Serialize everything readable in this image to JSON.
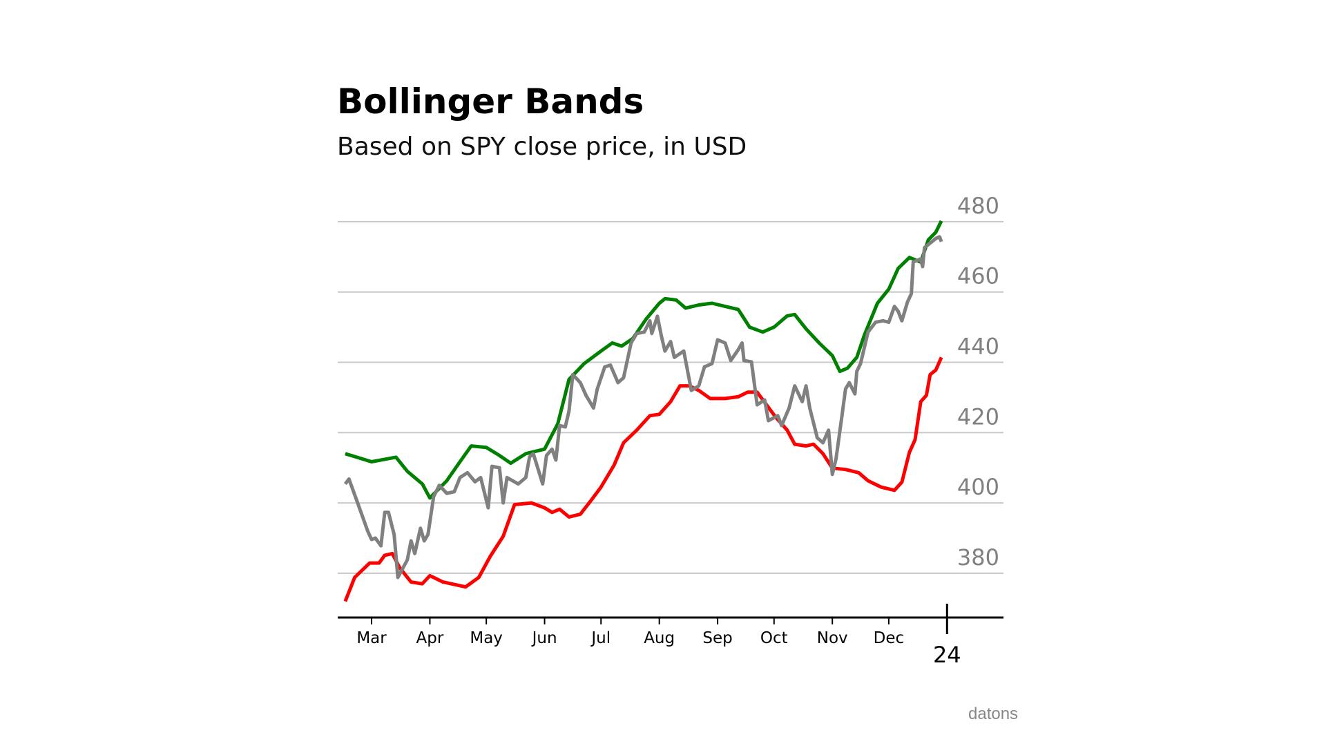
{
  "chart_data": {
    "type": "line",
    "title": "Bollinger Bands",
    "subtitle": "Based on SPY close price, in USD",
    "credit": "datons",
    "xlabel": "",
    "ylabel": "",
    "xlim": [
      "2023-02-11",
      "2024-01-31"
    ],
    "ylim": [
      367.4,
      490
    ],
    "y_axis_position": "right",
    "grid": "horizontal",
    "yticks": [
      380,
      400,
      420,
      440,
      460,
      480
    ],
    "xticks": [
      {
        "date": "2023-03-01",
        "label": "Mar"
      },
      {
        "date": "2023-04-01",
        "label": "Apr"
      },
      {
        "date": "2023-05-01",
        "label": "May"
      },
      {
        "date": "2023-06-01",
        "label": "Jun"
      },
      {
        "date": "2023-07-01",
        "label": "Jul"
      },
      {
        "date": "2023-08-01",
        "label": "Aug"
      },
      {
        "date": "2023-09-01",
        "label": "Sep"
      },
      {
        "date": "2023-10-01",
        "label": "Oct"
      },
      {
        "date": "2023-11-01",
        "label": "Nov"
      },
      {
        "date": "2023-12-01",
        "label": "Dec"
      }
    ],
    "major_xtick": {
      "date": "2024-01-01",
      "label": "24"
    },
    "series": [
      {
        "color": "#008000",
        "points": [
          [
            "2023-02-15",
            414
          ],
          [
            "2023-03-01",
            411.7
          ],
          [
            "2023-03-10",
            412.6
          ],
          [
            "2023-03-14",
            413
          ],
          [
            "2023-03-20",
            409
          ],
          [
            "2023-03-28",
            405.4
          ],
          [
            "2023-04-01",
            401.4
          ],
          [
            "2023-04-10",
            406.3
          ],
          [
            "2023-04-17",
            411.7
          ],
          [
            "2023-04-23",
            416.2
          ],
          [
            "2023-05-01",
            415.8
          ],
          [
            "2023-05-08",
            413.5
          ],
          [
            "2023-05-14",
            411.3
          ],
          [
            "2023-05-22",
            414
          ],
          [
            "2023-06-01",
            415.3
          ],
          [
            "2023-06-08",
            422.5
          ],
          [
            "2023-06-14",
            435.1
          ],
          [
            "2023-06-22",
            439.6
          ],
          [
            "2023-07-01",
            443.2
          ],
          [
            "2023-07-07",
            445.5
          ],
          [
            "2023-07-12",
            444.6
          ],
          [
            "2023-07-18",
            446.8
          ],
          [
            "2023-07-25",
            452.3
          ],
          [
            "2023-08-01",
            456.8
          ],
          [
            "2023-08-04",
            458.1
          ],
          [
            "2023-08-10",
            457.7
          ],
          [
            "2023-08-15",
            455.4
          ],
          [
            "2023-08-22",
            456.3
          ],
          [
            "2023-08-29",
            456.8
          ],
          [
            "2023-09-05",
            455.9
          ],
          [
            "2023-09-12",
            455
          ],
          [
            "2023-09-18",
            450
          ],
          [
            "2023-09-25",
            448.6
          ],
          [
            "2023-10-01",
            450
          ],
          [
            "2023-10-08",
            453.2
          ],
          [
            "2023-10-12",
            453.6
          ],
          [
            "2023-10-18",
            449.5
          ],
          [
            "2023-10-25",
            445.5
          ],
          [
            "2023-11-01",
            441.9
          ],
          [
            "2023-11-05",
            437.4
          ],
          [
            "2023-11-09",
            438.3
          ],
          [
            "2023-11-14",
            441.4
          ],
          [
            "2023-11-18",
            447.7
          ],
          [
            "2023-11-25",
            456.8
          ],
          [
            "2023-12-01",
            460.8
          ],
          [
            "2023-12-06",
            466.7
          ],
          [
            "2023-12-12",
            469.8
          ],
          [
            "2023-12-18",
            468.5
          ],
          [
            "2023-12-22",
            474.8
          ],
          [
            "2023-12-26",
            477
          ],
          [
            "2023-12-29",
            480.2
          ]
        ]
      },
      {
        "color": "#ff0000",
        "points": [
          [
            "2023-02-15",
            372
          ],
          [
            "2023-02-20",
            378.8
          ],
          [
            "2023-02-28",
            382.9
          ],
          [
            "2023-03-05",
            382.9
          ],
          [
            "2023-03-08",
            385.1
          ],
          [
            "2023-03-12",
            385.6
          ],
          [
            "2023-03-16",
            381.5
          ],
          [
            "2023-03-22",
            377.5
          ],
          [
            "2023-03-28",
            377
          ],
          [
            "2023-04-01",
            379.3
          ],
          [
            "2023-04-08",
            377.5
          ],
          [
            "2023-04-20",
            376.1
          ],
          [
            "2023-04-27",
            378.8
          ],
          [
            "2023-05-03",
            384.7
          ],
          [
            "2023-05-10",
            390.5
          ],
          [
            "2023-05-16",
            399.5
          ],
          [
            "2023-05-25",
            400
          ],
          [
            "2023-06-01",
            398.6
          ],
          [
            "2023-06-05",
            397.3
          ],
          [
            "2023-06-09",
            398.2
          ],
          [
            "2023-06-14",
            396
          ],
          [
            "2023-06-20",
            396.8
          ],
          [
            "2023-06-26",
            400.9
          ],
          [
            "2023-07-01",
            404.5
          ],
          [
            "2023-07-08",
            410.8
          ],
          [
            "2023-07-13",
            417.1
          ],
          [
            "2023-07-20",
            420.7
          ],
          [
            "2023-07-27",
            424.8
          ],
          [
            "2023-08-01",
            425.2
          ],
          [
            "2023-08-07",
            428.8
          ],
          [
            "2023-08-12",
            433.3
          ],
          [
            "2023-08-17",
            433.3
          ],
          [
            "2023-08-22",
            432
          ],
          [
            "2023-08-28",
            429.7
          ],
          [
            "2023-09-05",
            429.7
          ],
          [
            "2023-09-12",
            430.2
          ],
          [
            "2023-09-17",
            431.5
          ],
          [
            "2023-09-22",
            431.5
          ],
          [
            "2023-09-27",
            427.9
          ],
          [
            "2023-10-02",
            424.3
          ],
          [
            "2023-10-08",
            420.7
          ],
          [
            "2023-10-12",
            416.7
          ],
          [
            "2023-10-18",
            416.2
          ],
          [
            "2023-10-22",
            416.7
          ],
          [
            "2023-10-27",
            414
          ],
          [
            "2023-11-01",
            409.9
          ],
          [
            "2023-11-08",
            409.5
          ],
          [
            "2023-11-15",
            408.6
          ],
          [
            "2023-11-20",
            406.3
          ],
          [
            "2023-11-27",
            404.5
          ],
          [
            "2023-12-04",
            403.6
          ],
          [
            "2023-12-08",
            405.9
          ],
          [
            "2023-12-12",
            414.4
          ],
          [
            "2023-12-15",
            418
          ],
          [
            "2023-12-18",
            428.8
          ],
          [
            "2023-12-21",
            430.6
          ],
          [
            "2023-12-23",
            436.5
          ],
          [
            "2023-12-26",
            437.8
          ],
          [
            "2023-12-29",
            441.4
          ]
        ]
      },
      {
        "color": "#808080",
        "points": [
          [
            "2023-02-15",
            405.4
          ],
          [
            "2023-02-17",
            406.8
          ],
          [
            "2023-02-21",
            400.9
          ],
          [
            "2023-02-27",
            391.9
          ],
          [
            "2023-03-01",
            389.6
          ],
          [
            "2023-03-03",
            390
          ],
          [
            "2023-03-06",
            387.8
          ],
          [
            "2023-03-08",
            397.3
          ],
          [
            "2023-03-10",
            397.3
          ],
          [
            "2023-03-13",
            391
          ],
          [
            "2023-03-15",
            378.8
          ],
          [
            "2023-03-20",
            383.8
          ],
          [
            "2023-03-22",
            389.2
          ],
          [
            "2023-03-24",
            385.6
          ],
          [
            "2023-03-27",
            392.8
          ],
          [
            "2023-03-29",
            389.2
          ],
          [
            "2023-03-31",
            391
          ],
          [
            "2023-04-03",
            401.8
          ],
          [
            "2023-04-06",
            405
          ],
          [
            "2023-04-10",
            402.7
          ],
          [
            "2023-04-14",
            403.2
          ],
          [
            "2023-04-17",
            407.2
          ],
          [
            "2023-04-21",
            408.6
          ],
          [
            "2023-04-25",
            406
          ],
          [
            "2023-04-28",
            407.2
          ],
          [
            "2023-05-02",
            398.6
          ],
          [
            "2023-05-04",
            410.4
          ],
          [
            "2023-05-08",
            410
          ],
          [
            "2023-05-10",
            400
          ],
          [
            "2023-05-12",
            407.2
          ],
          [
            "2023-05-18",
            405.4
          ],
          [
            "2023-05-22",
            407.2
          ],
          [
            "2023-05-24",
            413.1
          ],
          [
            "2023-05-26",
            414
          ],
          [
            "2023-05-31",
            405.4
          ],
          [
            "2023-06-02",
            413.5
          ],
          [
            "2023-06-05",
            415.3
          ],
          [
            "2023-06-07",
            412.2
          ],
          [
            "2023-06-09",
            422
          ],
          [
            "2023-06-12",
            421.6
          ],
          [
            "2023-06-14",
            426.1
          ],
          [
            "2023-06-16",
            436.5
          ],
          [
            "2023-06-20",
            434.2
          ],
          [
            "2023-06-23",
            430.6
          ],
          [
            "2023-06-27",
            427
          ],
          [
            "2023-06-29",
            432.4
          ],
          [
            "2023-07-03",
            438.7
          ],
          [
            "2023-07-06",
            439.2
          ],
          [
            "2023-07-10",
            434.2
          ],
          [
            "2023-07-13",
            435.6
          ],
          [
            "2023-07-17",
            445.5
          ],
          [
            "2023-07-20",
            448.2
          ],
          [
            "2023-07-24",
            448.6
          ],
          [
            "2023-07-27",
            451.8
          ],
          [
            "2023-07-28",
            448.2
          ],
          [
            "2023-07-31",
            453.1
          ],
          [
            "2023-08-02",
            447.7
          ],
          [
            "2023-08-04",
            443.2
          ],
          [
            "2023-08-07",
            445.9
          ],
          [
            "2023-08-09",
            441.4
          ],
          [
            "2023-08-14",
            443.2
          ],
          [
            "2023-08-18",
            432
          ],
          [
            "2023-08-22",
            433.3
          ],
          [
            "2023-08-25",
            438.7
          ],
          [
            "2023-08-29",
            439.6
          ],
          [
            "2023-09-01",
            446.4
          ],
          [
            "2023-09-05",
            445.5
          ],
          [
            "2023-09-08",
            440.5
          ],
          [
            "2023-09-12",
            443.6
          ],
          [
            "2023-09-14",
            445.5
          ],
          [
            "2023-09-15",
            440.5
          ],
          [
            "2023-09-19",
            440.1
          ],
          [
            "2023-09-22",
            427.9
          ],
          [
            "2023-09-26",
            429.3
          ],
          [
            "2023-09-28",
            423.4
          ],
          [
            "2023-10-03",
            424.8
          ],
          [
            "2023-10-05",
            422
          ],
          [
            "2023-10-09",
            427
          ],
          [
            "2023-10-12",
            433.3
          ],
          [
            "2023-10-16",
            428.8
          ],
          [
            "2023-10-18",
            433.3
          ],
          [
            "2023-10-20",
            427
          ],
          [
            "2023-10-24",
            418.5
          ],
          [
            "2023-10-27",
            417.1
          ],
          [
            "2023-10-30",
            420.7
          ],
          [
            "2023-11-01",
            408.1
          ],
          [
            "2023-11-03",
            412.6
          ],
          [
            "2023-11-06",
            424.3
          ],
          [
            "2023-11-08",
            432.4
          ],
          [
            "2023-11-10",
            434.2
          ],
          [
            "2023-11-13",
            431
          ],
          [
            "2023-11-14",
            437.4
          ],
          [
            "2023-11-16",
            439.6
          ],
          [
            "2023-11-20",
            448.6
          ],
          [
            "2023-11-24",
            451.4
          ],
          [
            "2023-11-28",
            451.8
          ],
          [
            "2023-12-01",
            451.4
          ],
          [
            "2023-12-04",
            455.9
          ],
          [
            "2023-12-06",
            454.5
          ],
          [
            "2023-12-08",
            451.8
          ],
          [
            "2023-12-11",
            457.2
          ],
          [
            "2023-12-13",
            459.5
          ],
          [
            "2023-12-14",
            468.5
          ],
          [
            "2023-12-18",
            469.4
          ],
          [
            "2023-12-19",
            467.2
          ],
          [
            "2023-12-20",
            472.6
          ],
          [
            "2023-12-26",
            475.2
          ],
          [
            "2023-12-28",
            475.7
          ],
          [
            "2023-12-29",
            474.3
          ]
        ]
      }
    ]
  }
}
